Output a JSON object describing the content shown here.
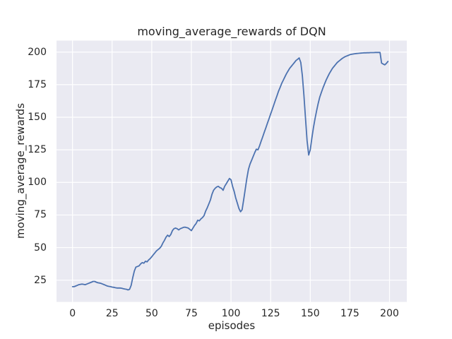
{
  "chart_data": {
    "type": "line",
    "title": "moving_average_rewards of DQN",
    "xlabel": "episodes",
    "ylabel": "moving_average_rewards",
    "x_ticks": [
      0,
      25,
      50,
      75,
      100,
      125,
      150,
      175,
      200
    ],
    "y_ticks": [
      25,
      50,
      75,
      100,
      125,
      150,
      175,
      200
    ],
    "xlim": [
      -10.1,
      210.9
    ],
    "ylim": [
      8.3,
      208.8
    ],
    "grid": true,
    "colors": {
      "line": "#4c72b0",
      "plot_background": "#eaeaf2",
      "grid": "#ffffff",
      "text": "#262626",
      "figure_background": "#ffffff"
    },
    "series": [
      {
        "name": "moving_average_rewards",
        "x0": 0,
        "dx": 1,
        "values": [
          20,
          20,
          20.5,
          21,
          21.5,
          21.8,
          22,
          21.8,
          21.5,
          22,
          22.5,
          23,
          23.5,
          24,
          24,
          23.5,
          23,
          22.8,
          22.5,
          22,
          21.5,
          21,
          20.5,
          20.2,
          20,
          19.7,
          19.5,
          19.2,
          19,
          19,
          19,
          18.8,
          18.5,
          18.2,
          18,
          17.5,
          18,
          21,
          27,
          32,
          35,
          35.5,
          36,
          37.5,
          38.5,
          38,
          39.5,
          39,
          40.5,
          41.5,
          43,
          44.5,
          46,
          47.5,
          48.5,
          49.5,
          51,
          53.5,
          55.5,
          58,
          59.5,
          58.5,
          60,
          63,
          64.5,
          65,
          64.5,
          63.5,
          64.5,
          65,
          65.5,
          65.7,
          65.3,
          65,
          64,
          63,
          65,
          67,
          68.5,
          71,
          70.5,
          72,
          73,
          74.5,
          78,
          80.5,
          83.5,
          86.5,
          91,
          94,
          95.5,
          96.5,
          97,
          96,
          95.5,
          94,
          97,
          99,
          101,
          103,
          102,
          97,
          93,
          88,
          84,
          80,
          77.5,
          79,
          87,
          95,
          103,
          110,
          114,
          117,
          120,
          123,
          125.5,
          125,
          128,
          131.5,
          135,
          138.5,
          142,
          145.5,
          149,
          152.5,
          156,
          159.5,
          163,
          166.5,
          170,
          173,
          176,
          178.5,
          181,
          183.5,
          185.5,
          187.5,
          189,
          190.5,
          192,
          193.5,
          194.5,
          195.5,
          192,
          182,
          167,
          149,
          132,
          121,
          125,
          134,
          142,
          149,
          155,
          160.5,
          165.5,
          169,
          172.5,
          175.5,
          178.5,
          181,
          183.5,
          185.5,
          187.5,
          189,
          190.5,
          192,
          193,
          194,
          195,
          195.8,
          196.5,
          197,
          197.5,
          198,
          198.3,
          198.5,
          198.7,
          198.9,
          199,
          199.1,
          199.2,
          199.3,
          199.4,
          199.4,
          199.5,
          199.5,
          199.6,
          199.6,
          199.6,
          199.7,
          199.7,
          199.7,
          199.7,
          191.5,
          190.8,
          190.2,
          191.3,
          192.8
        ]
      }
    ]
  }
}
